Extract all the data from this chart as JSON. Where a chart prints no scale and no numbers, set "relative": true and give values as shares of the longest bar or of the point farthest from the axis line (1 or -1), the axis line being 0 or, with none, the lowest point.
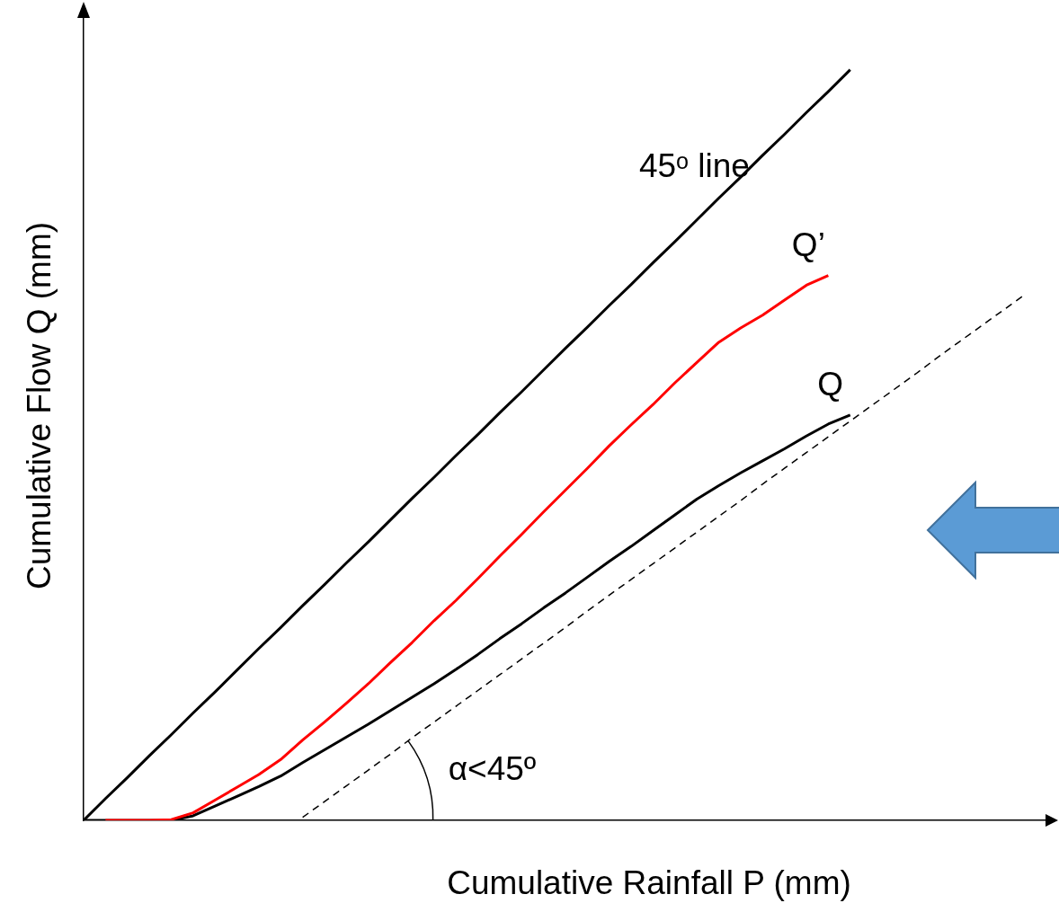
{
  "chart_data": {
    "type": "line",
    "relative": true,
    "xlabel": "Cumulative Rainfall P (mm)",
    "ylabel": "Cumulative Flow Q (mm)",
    "legend": false,
    "grid": false,
    "marker": "none",
    "annotations": [
      "α<45º"
    ],
    "categories": [
      null,
      null,
      null,
      null,
      null,
      null,
      null,
      null,
      null,
      null,
      null,
      null,
      null,
      null,
      null,
      null,
      null,
      null,
      null,
      null,
      null,
      null,
      null,
      null,
      null,
      null,
      null,
      null,
      null,
      null,
      null,
      null,
      null,
      null,
      null,
      null,
      null,
      null,
      null,
      null,
      null,
      null,
      null,
      null,
      null
    ],
    "series": [
      {
        "name": "45ᵒ line",
        "color": "#000000",
        "values": [
          0,
          0.029,
          0.057,
          0.086,
          0.114,
          0.143,
          0.171,
          0.2,
          0.229,
          0.257,
          0.286,
          0.314,
          0.343,
          0.371,
          0.4,
          0.429,
          0.457,
          0.486,
          0.514,
          0.543,
          0.571,
          0.6,
          0.629,
          0.657,
          0.686,
          0.714,
          0.743,
          0.771,
          0.8,
          0.829,
          0.857,
          0.886,
          0.914,
          0.943,
          0.971,
          1,
          null,
          null,
          null,
          null,
          null,
          null,
          null,
          null,
          null
        ]
      },
      {
        "name": "Q’",
        "color": "#ff0000",
        "values": [
          null,
          0,
          0,
          0,
          0.001,
          0.01,
          0.027,
          0.044,
          0.061,
          0.081,
          0.107,
          0.131,
          0.156,
          0.182,
          0.21,
          0.237,
          0.266,
          0.293,
          0.322,
          0.352,
          0.381,
          0.411,
          0.44,
          0.469,
          0.499,
          0.527,
          0.554,
          0.583,
          0.61,
          0.637,
          0.656,
          0.673,
          0.693,
          0.713,
          0.726,
          null,
          null,
          null,
          null,
          null,
          null,
          null,
          null,
          null,
          null
        ]
      },
      {
        "name": "Q",
        "color": "#000000",
        "values": [
          0,
          0,
          0,
          0,
          0,
          0.006,
          0.019,
          0.032,
          0.045,
          0.059,
          0.077,
          0.094,
          0.111,
          0.128,
          0.146,
          0.164,
          0.182,
          0.201,
          0.221,
          0.242,
          0.262,
          0.283,
          0.303,
          0.324,
          0.345,
          0.365,
          0.386,
          0.407,
          0.428,
          0.446,
          0.463,
          0.479,
          0.495,
          0.512,
          0.528,
          0.54,
          null,
          null,
          null,
          null,
          null,
          null,
          null,
          null,
          null
        ]
      },
      {
        "color": "#000000",
        "line_style": "dashed",
        "values": [
          null,
          null,
          null,
          null,
          null,
          null,
          null,
          null,
          null,
          null,
          0.004,
          0.025,
          0.046,
          0.067,
          0.088,
          0.11,
          0.131,
          0.152,
          0.173,
          0.194,
          0.215,
          0.236,
          0.257,
          0.279,
          0.3,
          0.321,
          0.342,
          0.363,
          0.384,
          0.405,
          0.426,
          0.448,
          0.469,
          0.49,
          0.511,
          0.532,
          0.553,
          0.574,
          0.595,
          0.617,
          0.638,
          0.659,
          0.68,
          0.701,
          null
        ]
      }
    ]
  }
}
